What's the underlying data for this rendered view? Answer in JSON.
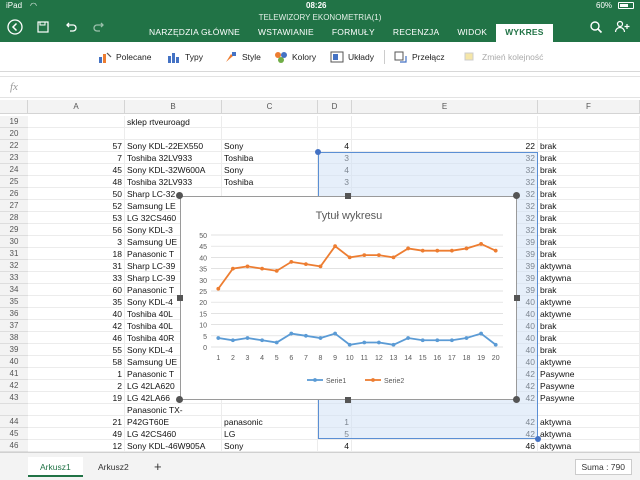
{
  "status": {
    "device": "iPad",
    "time": "08:26",
    "battery": "60%"
  },
  "app": {
    "document_title": "TELEWIZORY EKONOMETRIA(1)",
    "accent_color": "#217346"
  },
  "tabs": [
    {
      "label": "NARZĘDZIA GŁÓWNE",
      "active": false
    },
    {
      "label": "WSTAWIANIE",
      "active": false
    },
    {
      "label": "FORMUŁY",
      "active": false
    },
    {
      "label": "RECENZJA",
      "active": false
    },
    {
      "label": "WIDOK",
      "active": false
    },
    {
      "label": "WYKRES",
      "active": true
    }
  ],
  "ribbon": {
    "recommended": "Polecane",
    "types": "Typy",
    "styles": "Style",
    "colors": "Kolory",
    "layouts": "Układy",
    "switch": "Przełącz",
    "reorder": "Zmień kolejność"
  },
  "formula": {
    "fx": "fx",
    "value": ""
  },
  "columns": [
    "A",
    "B",
    "C",
    "D",
    "E",
    "F"
  ],
  "rows": [
    {
      "n": "19",
      "a": "",
      "b": "sklep rtveuroagd",
      "c": "",
      "d": "",
      "e": "",
      "f": ""
    },
    {
      "n": "20",
      "a": "",
      "b": "",
      "c": "",
      "d": "",
      "e": "",
      "f": ""
    },
    {
      "n": "22",
      "a": "57",
      "b": "Sony KDL-22EX550",
      "c": "Sony",
      "d": "4",
      "e": "22",
      "f": "brak"
    },
    {
      "n": "23",
      "a": "7",
      "b": "Toshiba 32LV933",
      "c": "Toshiba",
      "d": "3",
      "e": "32",
      "f": "brak"
    },
    {
      "n": "24",
      "a": "45",
      "b": "Sony KDL-32W600A",
      "c": "Sony",
      "d": "4",
      "e": "32",
      "f": "brak"
    },
    {
      "n": "25",
      "a": "48",
      "b": "Toshiba 32LV933",
      "c": "Toshiba",
      "d": "3",
      "e": "32",
      "f": "brak"
    },
    {
      "n": "26",
      "a": "50",
      "b": "Sharp LC-32",
      "c": "",
      "d": "",
      "e": "32",
      "f": "brak"
    },
    {
      "n": "27",
      "a": "52",
      "b": "Samsung LE",
      "c": "",
      "d": "",
      "e": "32",
      "f": "brak"
    },
    {
      "n": "28",
      "a": "53",
      "b": "LG 32CS460",
      "c": "",
      "d": "",
      "e": "32",
      "f": "brak"
    },
    {
      "n": "29",
      "a": "56",
      "b": "Sony KDL-3",
      "c": "",
      "d": "",
      "e": "32",
      "f": "brak"
    },
    {
      "n": "30",
      "a": "3",
      "b": "Samsung UE",
      "c": "",
      "d": "",
      "e": "39",
      "f": "brak"
    },
    {
      "n": "31",
      "a": "18",
      "b": "Panasonic T",
      "c": "",
      "d": "",
      "e": "39",
      "f": "brak"
    },
    {
      "n": "32",
      "a": "31",
      "b": "Sharp LC-39",
      "c": "",
      "d": "",
      "e": "39",
      "f": "aktywna"
    },
    {
      "n": "33",
      "a": "33",
      "b": "Sharp LC-39",
      "c": "",
      "d": "",
      "e": "39",
      "f": "aktywna"
    },
    {
      "n": "34",
      "a": "60",
      "b": "Panasonic T",
      "c": "",
      "d": "",
      "e": "39",
      "f": "brak"
    },
    {
      "n": "35",
      "a": "35",
      "b": "Sony KDL-4",
      "c": "",
      "d": "",
      "e": "40",
      "f": "aktywne"
    },
    {
      "n": "36",
      "a": "40",
      "b": "Toshiba 40L",
      "c": "",
      "d": "",
      "e": "40",
      "f": "aktywne"
    },
    {
      "n": "37",
      "a": "42",
      "b": "Toshiba 40L",
      "c": "",
      "d": "",
      "e": "40",
      "f": "brak"
    },
    {
      "n": "38",
      "a": "46",
      "b": "Toshiba 40R",
      "c": "",
      "d": "",
      "e": "40",
      "f": "brak"
    },
    {
      "n": "39",
      "a": "55",
      "b": "Sony KDL-4",
      "c": "",
      "d": "",
      "e": "40",
      "f": "brak"
    },
    {
      "n": "40",
      "a": "58",
      "b": "Samsung UE",
      "c": "",
      "d": "",
      "e": "40",
      "f": "aktywne"
    },
    {
      "n": "41",
      "a": "1",
      "b": "Panasonic T",
      "c": "",
      "d": "",
      "e": "42",
      "f": "Pasywne"
    },
    {
      "n": "42",
      "a": "2",
      "b": "LG 42LA620",
      "c": "",
      "d": "",
      "e": "42",
      "f": "Pasywne"
    },
    {
      "n": "43",
      "a": "19",
      "b": "LG 42LA66",
      "c": "",
      "d": "",
      "e": "42",
      "f": "Pasywne"
    },
    {
      "n": "",
      "a": "",
      "b": "Panasonic TX-",
      "c": "",
      "d": "",
      "e": "",
      "f": ""
    },
    {
      "n": "44",
      "a": "21",
      "b": "P42GT60E",
      "c": "panasonic",
      "d": "1",
      "e": "42",
      "f": "aktywna"
    },
    {
      "n": "45",
      "a": "49",
      "b": "LG 42CS460",
      "c": "LG",
      "d": "5",
      "e": "42",
      "f": "aktywna"
    },
    {
      "n": "46",
      "a": "12",
      "b": "Sony KDL-46W905A",
      "c": "Sony",
      "d": "4",
      "e": "46",
      "f": "aktywna"
    }
  ],
  "chart_data": {
    "type": "line",
    "title": "Tytuł wykresu",
    "x": [
      1,
      2,
      3,
      4,
      5,
      6,
      7,
      8,
      9,
      10,
      11,
      12,
      13,
      14,
      15,
      16,
      17,
      18,
      19,
      20
    ],
    "ylim": [
      0,
      50
    ],
    "yticks": [
      0,
      5,
      10,
      15,
      20,
      25,
      30,
      35,
      40,
      45,
      50
    ],
    "grid": true,
    "legend": "bottom",
    "series": [
      {
        "name": "Serie1",
        "color": "#5b9bd5",
        "values": [
          4,
          3,
          4,
          3,
          2,
          6,
          5,
          4,
          6,
          1,
          2,
          2,
          1,
          4,
          3,
          3,
          3,
          4,
          6,
          1
        ]
      },
      {
        "name": "Serie2",
        "color": "#ed7d31",
        "values": [
          26,
          35,
          36,
          35,
          34,
          38,
          37,
          36,
          45,
          40,
          41,
          41,
          40,
          44,
          43,
          43,
          43,
          44,
          46,
          43
        ]
      }
    ]
  },
  "sheets": {
    "tabs": [
      "Arkusz1",
      "Arkusz2"
    ],
    "active": "Arkusz1",
    "add": "+"
  },
  "summary": {
    "label": "Suma : 790"
  }
}
